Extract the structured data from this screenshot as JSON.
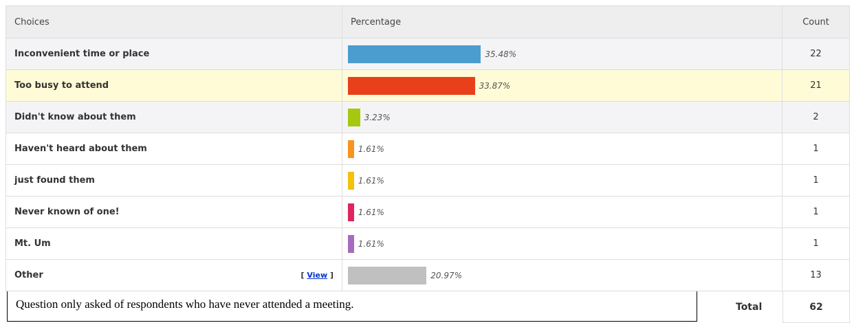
{
  "chart_data": {
    "type": "bar",
    "orientation": "horizontal",
    "columns": [
      "Choices",
      "Percentage",
      "Count"
    ],
    "categories": [
      "Inconvenient time or place",
      "Too busy to attend",
      "Didn't know about them",
      "Haven't heard about them",
      "just found them",
      "Never known of one!",
      "Mt. Um",
      "Other"
    ],
    "values": [
      35.48,
      33.87,
      3.23,
      1.61,
      1.61,
      1.61,
      1.61,
      20.97
    ],
    "value_labels": [
      "35.48%",
      "33.87%",
      "3.23%",
      "1.61%",
      "1.61%",
      "1.61%",
      "1.61%",
      "20.97%"
    ],
    "colors": [
      "#4b9ccf",
      "#e8401a",
      "#a6c80f",
      "#f7941d",
      "#f4c20d",
      "#e0245e",
      "#a66bbe",
      "#c0c0c0"
    ],
    "counts": [
      22,
      21,
      2,
      1,
      1,
      1,
      1,
      13
    ],
    "highlight_row": 1,
    "link_row": 7,
    "link_open": "[",
    "link_label": "View",
    "link_close": "]",
    "total_label": "Total",
    "total": 62,
    "note": "Question only asked of respondents who have never attended a meeting."
  }
}
